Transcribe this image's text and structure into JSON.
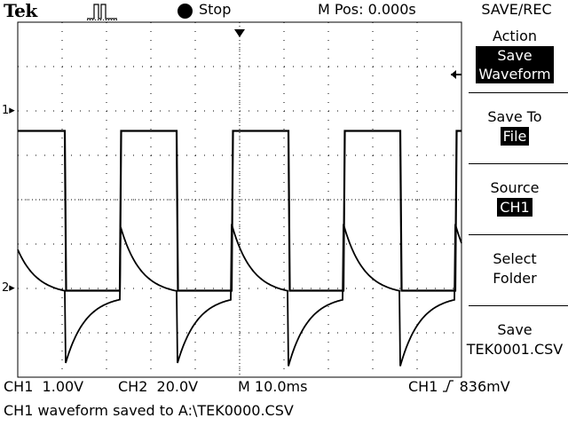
{
  "header": {
    "brand": "Tek",
    "trigger_icon": "pulse-trigger-icon",
    "run_state_icon": "filled-circle-icon",
    "run_state": "Stop",
    "m_pos": "M Pos: 0.000s",
    "menu_title": "SAVE/REC"
  },
  "menu": {
    "action_label": "Action",
    "action_value_line1": "Save",
    "action_value_line2": "Waveform",
    "save_to_label": "Save To",
    "save_to_value": "File",
    "source_label": "Source",
    "source_value": "CH1",
    "select_folder_line1": "Select",
    "select_folder_line2": "Folder",
    "save_file_line1": "Save",
    "save_file_line2": "TEK0001.CSV"
  },
  "channels": {
    "ch1_marker": "1",
    "ch2_marker": "2"
  },
  "status": {
    "ch1_scale": "CH1  1.00V",
    "ch2_scale": "CH2  20.0V",
    "timebase": "M 10.0ms",
    "trigger_source": "CH1",
    "trigger_level": "836mV"
  },
  "message": "CH1 waveform saved to A:\\TEK0000.CSV",
  "chart_data": {
    "type": "line",
    "x": [
      0,
      10,
      20,
      30,
      40,
      50,
      60,
      70,
      80,
      90,
      100
    ],
    "x_unit": "ms",
    "x_divisions": 10,
    "series": [
      {
        "name": "CH1",
        "shape": "square wave",
        "high_level_div": 1.55,
        "low_level_div": -2.05,
        "period_ms": 25.2,
        "duty_cycle": 0.49,
        "first_falling_edge_ms": 10.6,
        "rising_edges_ms": [
          23.0,
          48.2,
          73.4,
          98.6
        ],
        "falling_edges_ms": [
          10.6,
          35.8,
          61.0,
          86.2
        ]
      },
      {
        "name": "CH2",
        "shape": "RC differentiated square wave",
        "baseline_div": -2.15,
        "spike_up_peak_div": -0.55,
        "spike_down_peak_div": -3.75,
        "decay_time_constant_ms": 4.5,
        "period_ms": 25.2
      }
    ],
    "grid": true,
    "xlim": [
      0,
      100
    ],
    "ylim": [
      -4,
      4
    ]
  }
}
